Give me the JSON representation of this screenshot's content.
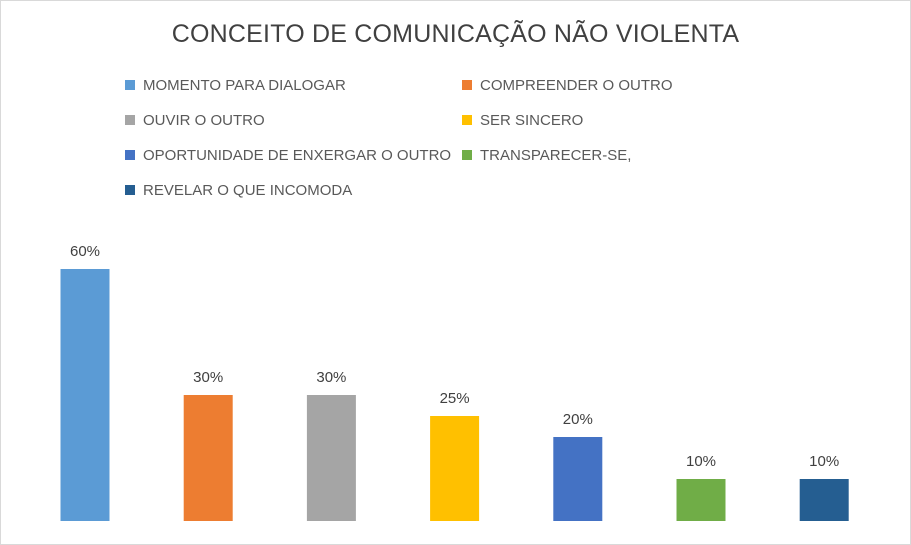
{
  "chart_data": {
    "type": "bar",
    "title": "CONCEITO DE COMUNICAÇÃO NÃO VIOLENTA",
    "categories": [
      "MOMENTO PARA DIALOGAR",
      "COMPREENDER O OUTRO",
      "OUVIR O OUTRO",
      "SER SINCERO",
      "OPORTUNIDADE DE ENXERGAR O OUTRO",
      "TRANSPARECER-SE,",
      "REVELAR O QUE INCOMODA"
    ],
    "values": [
      60,
      30,
      30,
      25,
      20,
      10,
      10
    ],
    "data_labels": [
      "60%",
      "30%",
      "30%",
      "25%",
      "20%",
      "10%",
      "10%"
    ],
    "colors": [
      "#5b9bd5",
      "#ed7d31",
      "#a5a5a5",
      "#ffc000",
      "#4472c4",
      "#70ad47",
      "#255e91"
    ],
    "unit": "%",
    "ylim": [
      0,
      60
    ],
    "grid": false,
    "legend_position": "top"
  }
}
